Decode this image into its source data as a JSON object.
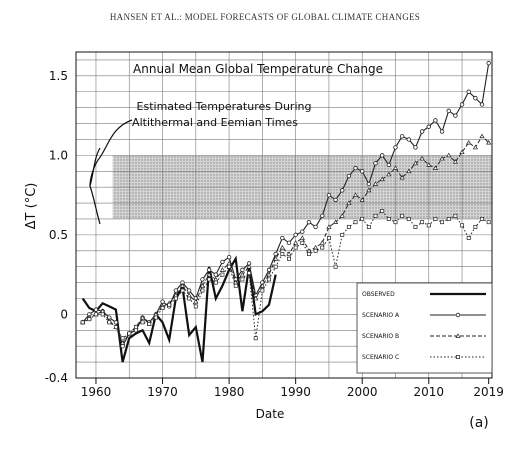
{
  "header": "HANSEN ET AL.: MODEL FORECASTS OF GLOBAL CLIMATE CHANGES",
  "chart_data": {
    "type": "line",
    "title": "Annual Mean Global Temperature Change",
    "annotation": [
      "Estimated Temperatures During",
      "Altithermal and Eemian Times"
    ],
    "xlabel": "Date",
    "ylabel": "ΔT (°C)",
    "panel_label": "(a)",
    "xlim": [
      1957,
      2019.5
    ],
    "ylim": [
      -0.4,
      1.65
    ],
    "x_ticks": [
      1960,
      1970,
      1980,
      1990,
      2000,
      2010,
      2019
    ],
    "y_ticks": [
      -0.4,
      0,
      0.5,
      1.0,
      1.5
    ],
    "y_tick_labels": [
      "-0.4",
      "0",
      "0.5",
      "1.0",
      "1.5"
    ],
    "grid": true,
    "band": {
      "y0": 0.6,
      "y1": 1.0,
      "x0": 1962.5,
      "x1": 2019.5
    },
    "legend_position": "lower-right",
    "series": [
      {
        "name": "OBSERVED",
        "style": "solid-thick",
        "color": "#111111",
        "x": [
          1958,
          1959,
          1960,
          1961,
          1962,
          1963,
          1964,
          1965,
          1966,
          1967,
          1968,
          1969,
          1970,
          1971,
          1972,
          1973,
          1974,
          1975,
          1976,
          1977,
          1978,
          1979,
          1980,
          1981,
          1982,
          1983,
          1984,
          1985,
          1986,
          1987
        ],
        "y": [
          0.1,
          0.04,
          0.02,
          0.07,
          0.05,
          0.03,
          -0.3,
          -0.15,
          -0.12,
          -0.1,
          -0.18,
          0.0,
          -0.05,
          -0.16,
          0.1,
          0.17,
          -0.13,
          -0.08,
          -0.3,
          0.3,
          0.1,
          0.18,
          0.28,
          0.35,
          0.02,
          0.3,
          0.0,
          0.02,
          0.06,
          0.25
        ]
      },
      {
        "name": "SCENARIO A",
        "style": "solid-circles",
        "color": "#222222",
        "x": [
          1958,
          1959,
          1960,
          1961,
          1962,
          1963,
          1964,
          1965,
          1966,
          1967,
          1968,
          1969,
          1970,
          1971,
          1972,
          1973,
          1974,
          1975,
          1976,
          1977,
          1978,
          1979,
          1980,
          1981,
          1982,
          1983,
          1984,
          1985,
          1986,
          1987,
          1988,
          1989,
          1990,
          1991,
          1992,
          1993,
          1994,
          1995,
          1996,
          1997,
          1998,
          1999,
          2000,
          2001,
          2002,
          2003,
          2004,
          2005,
          2006,
          2007,
          2008,
          2009,
          2010,
          2011,
          2012,
          2013,
          2014,
          2015,
          2016,
          2017,
          2018,
          2019
        ],
        "y": [
          -0.05,
          0.0,
          0.03,
          0.02,
          -0.02,
          -0.05,
          -0.2,
          -0.12,
          -0.1,
          -0.02,
          -0.05,
          0.0,
          0.08,
          0.05,
          0.15,
          0.2,
          0.15,
          0.1,
          0.22,
          0.28,
          0.25,
          0.33,
          0.36,
          0.22,
          0.28,
          0.32,
          0.12,
          0.2,
          0.28,
          0.38,
          0.48,
          0.45,
          0.5,
          0.52,
          0.58,
          0.55,
          0.62,
          0.75,
          0.72,
          0.78,
          0.87,
          0.92,
          0.9,
          0.82,
          0.95,
          1.0,
          0.94,
          1.05,
          1.12,
          1.1,
          1.05,
          1.15,
          1.18,
          1.22,
          1.15,
          1.28,
          1.25,
          1.32,
          1.4,
          1.36,
          1.32,
          1.58
        ]
      },
      {
        "name": "SCENARIO B",
        "style": "dashed-triangles",
        "color": "#222222",
        "x": [
          1958,
          1959,
          1960,
          1961,
          1962,
          1963,
          1964,
          1965,
          1966,
          1967,
          1968,
          1969,
          1970,
          1971,
          1972,
          1973,
          1974,
          1975,
          1976,
          1977,
          1978,
          1979,
          1980,
          1981,
          1982,
          1983,
          1984,
          1985,
          1986,
          1987,
          1988,
          1989,
          1990,
          1991,
          1992,
          1993,
          1994,
          1995,
          1996,
          1997,
          1998,
          1999,
          2000,
          2001,
          2002,
          2003,
          2004,
          2005,
          2006,
          2007,
          2008,
          2009,
          2010,
          2011,
          2012,
          2013,
          2014,
          2015,
          2016,
          2017,
          2018,
          2019
        ],
        "y": [
          -0.05,
          -0.02,
          0.0,
          0.02,
          -0.04,
          -0.08,
          -0.18,
          -0.12,
          -0.08,
          -0.02,
          -0.06,
          0.0,
          0.05,
          0.07,
          0.12,
          0.18,
          0.12,
          0.08,
          0.18,
          0.25,
          0.22,
          0.28,
          0.32,
          0.2,
          0.25,
          0.3,
          0.1,
          0.18,
          0.25,
          0.35,
          0.42,
          0.38,
          0.45,
          0.48,
          0.4,
          0.42,
          0.45,
          0.55,
          0.58,
          0.62,
          0.7,
          0.75,
          0.72,
          0.78,
          0.82,
          0.85,
          0.88,
          0.92,
          0.86,
          0.9,
          0.95,
          0.98,
          0.94,
          0.92,
          0.98,
          1.0,
          0.96,
          1.02,
          1.08,
          1.05,
          1.12,
          1.08
        ]
      },
      {
        "name": "SCENARIO C",
        "style": "dotted-squares",
        "color": "#222222",
        "x": [
          1958,
          1959,
          1960,
          1961,
          1962,
          1963,
          1964,
          1965,
          1966,
          1967,
          1968,
          1969,
          1970,
          1971,
          1972,
          1973,
          1974,
          1975,
          1976,
          1977,
          1978,
          1979,
          1980,
          1981,
          1982,
          1983,
          1984,
          1985,
          1986,
          1987,
          1988,
          1989,
          1990,
          1991,
          1992,
          1993,
          1994,
          1995,
          1996,
          1997,
          1998,
          1999,
          2000,
          2001,
          2002,
          2003,
          2004,
          2005,
          2006,
          2007,
          2008,
          2009,
          2010,
          2011,
          2012,
          2013,
          2014,
          2015,
          2016,
          2017,
          2018,
          2019
        ],
        "y": [
          -0.05,
          -0.03,
          0.0,
          0.0,
          -0.05,
          -0.08,
          -0.15,
          -0.12,
          -0.08,
          -0.05,
          -0.06,
          -0.02,
          0.04,
          0.06,
          0.1,
          0.15,
          0.1,
          0.05,
          0.15,
          0.22,
          0.2,
          0.25,
          0.3,
          0.18,
          0.22,
          0.26,
          -0.15,
          0.15,
          0.22,
          0.3,
          0.38,
          0.35,
          0.42,
          0.45,
          0.38,
          0.4,
          0.42,
          0.48,
          0.3,
          0.5,
          0.55,
          0.58,
          0.6,
          0.55,
          0.62,
          0.65,
          0.6,
          0.58,
          0.62,
          0.6,
          0.55,
          0.58,
          0.56,
          0.6,
          0.58,
          0.6,
          0.62,
          0.56,
          0.48,
          0.55,
          0.6,
          0.58
        ]
      }
    ]
  }
}
